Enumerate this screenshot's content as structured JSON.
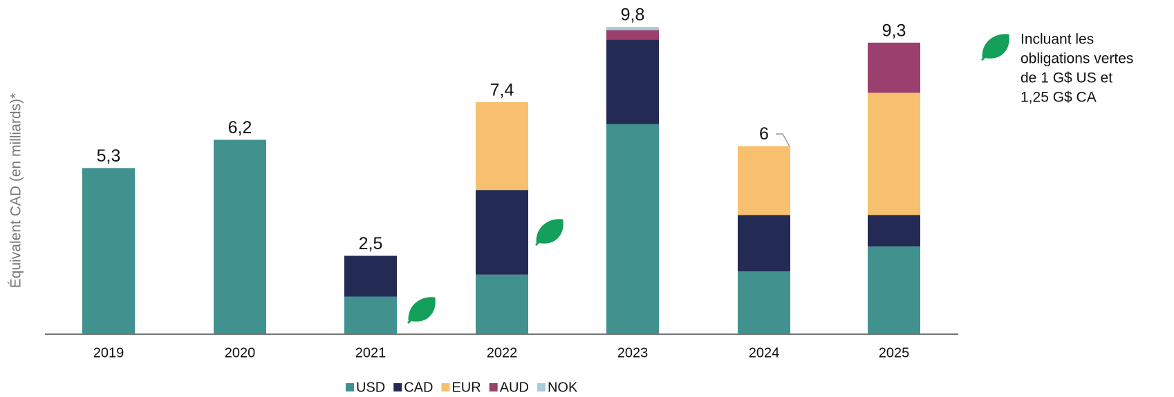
{
  "chart_data": {
    "type": "stacked_bar",
    "y_label": "Équivalent CAD (en milliards)*",
    "categories": [
      "2019",
      "2020",
      "2021",
      "2022",
      "2023",
      "2024",
      "2025"
    ],
    "series": [
      {
        "name": "USD",
        "color": "#41918f",
        "values": [
          5.3,
          6.2,
          1.2,
          1.9,
          6.7,
          2.0,
          2.8
        ]
      },
      {
        "name": "CAD",
        "color": "#232b55",
        "values": [
          null,
          null,
          1.3,
          2.7,
          2.7,
          1.8,
          1.0
        ]
      },
      {
        "name": "EUR",
        "color": "#f7c06e",
        "values": [
          null,
          null,
          null,
          2.8,
          null,
          2.2,
          3.9
        ]
      },
      {
        "name": "AUD",
        "color": "#9b3f6e",
        "values": [
          null,
          null,
          null,
          null,
          0.3,
          null,
          1.6
        ]
      },
      {
        "name": "NOK",
        "color": "#a6cdd9",
        "values": [
          null,
          null,
          null,
          null,
          0.1,
          null,
          null
        ]
      }
    ],
    "totals": [
      5.3,
      6.2,
      2.5,
      7.4,
      9.8,
      6,
      9.3
    ],
    "total_labels": [
      "5,3",
      "6,2",
      "2,5",
      "7,4",
      "9,8",
      "6",
      "9,3"
    ],
    "annotation": [
      "Incluant les",
      "obligations vertes",
      "de 1 G$ US et",
      "1,25 G$ CA"
    ],
    "ylim": [
      0,
      10
    ],
    "legend": "bottom"
  }
}
